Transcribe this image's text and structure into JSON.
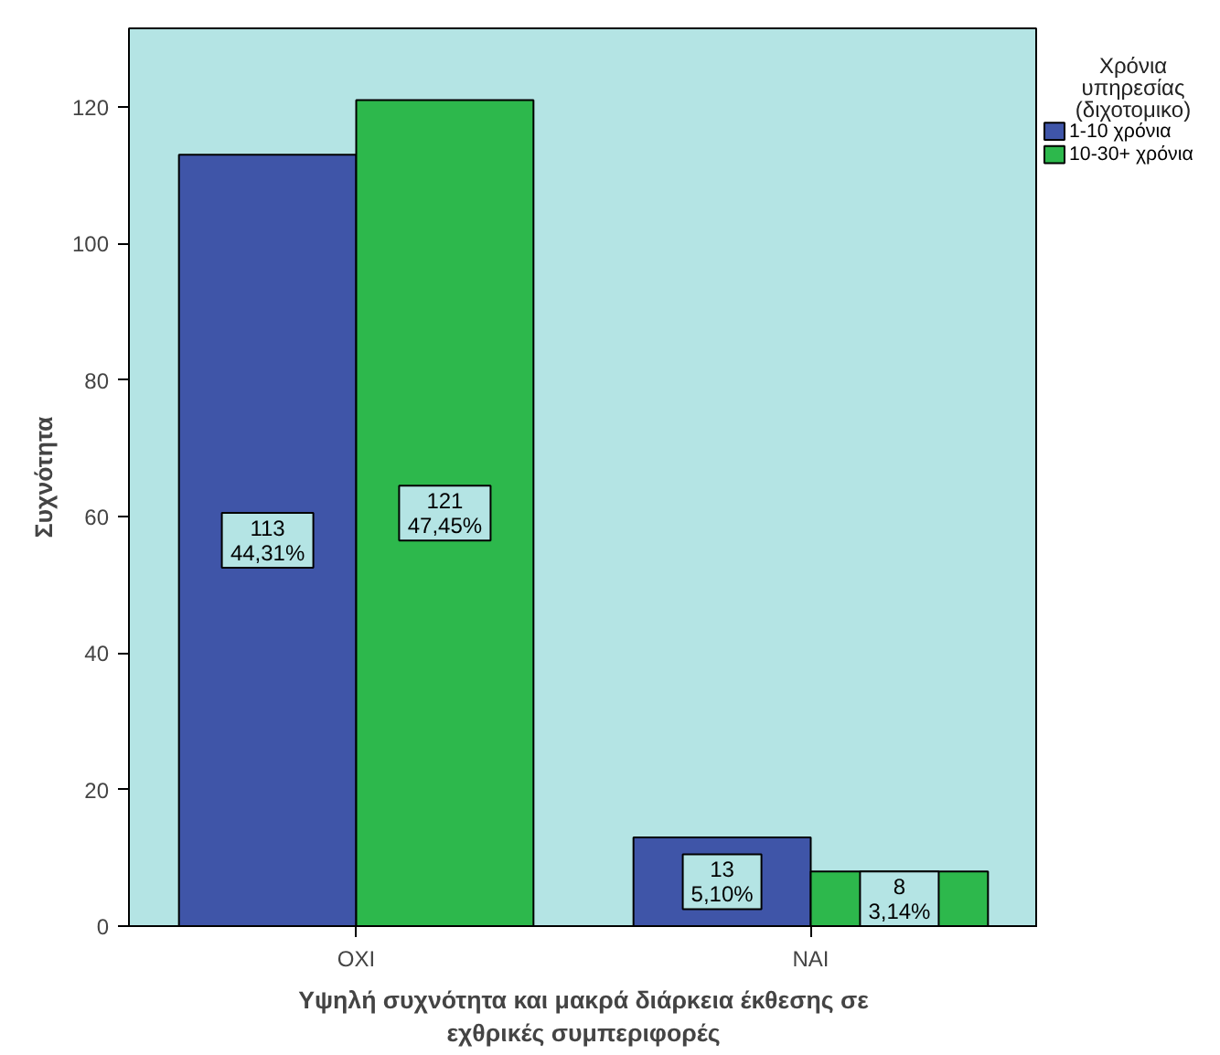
{
  "chart_data": {
    "type": "bar",
    "xlabel": "Υψηλή συχνότητα και μακρά διάρκεια έκθεσης σε\nεχθρικές συμπεριφορές",
    "ylabel": "Συχνότητα",
    "legend_title": "Χρόνια\nυπηρεσίας\n(διχοτομικο)",
    "categories": [
      "ΟΧΙ",
      "ΝΑΙ"
    ],
    "series": [
      {
        "name": "1-10 χρόνια",
        "color": "#3f55a8",
        "values": [
          113,
          13
        ],
        "value_labels": [
          "113\n44,31%",
          "13\n5,10%"
        ]
      },
      {
        "name": "10-30+ χρόνια",
        "color": "#2db84c",
        "values": [
          121,
          8
        ],
        "value_labels": [
          "121\n47,45%",
          "8\n3,14%"
        ]
      }
    ],
    "ylim": [
      0,
      131.5
    ],
    "yticks": [
      0,
      20,
      40,
      60,
      80,
      100,
      120
    ],
    "grid": false,
    "legend": "right"
  }
}
